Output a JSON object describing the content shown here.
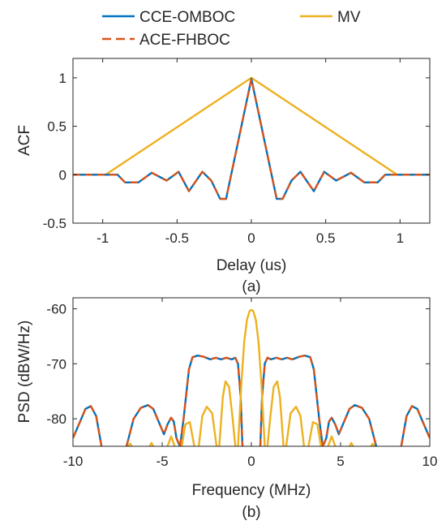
{
  "legend": {
    "placement": "top, outside axes",
    "items": [
      {
        "label": "CCE-OMBOC",
        "color": "#0072BD",
        "style": "solid"
      },
      {
        "label": "MV",
        "color": "#EDB120",
        "style": "solid"
      },
      {
        "label": "ACE-FHBOC",
        "color": "#D95319",
        "style": "dashed"
      }
    ]
  },
  "chart_data": [
    {
      "type": "line",
      "caption": "(a)",
      "xlabel": "Delay (us)",
      "ylabel": "ACF",
      "xlim": [
        -1.2,
        1.2
      ],
      "ylim": [
        -0.5,
        1.2
      ],
      "xticks": [
        -1,
        -0.5,
        0,
        0.5,
        1
      ],
      "xtick_labels": [
        "-1",
        "-0.5",
        "0",
        "0.5",
        "1"
      ],
      "yticks": [
        -0.5,
        0,
        0.5,
        1
      ],
      "ytick_labels": [
        "-0.5",
        "0",
        "0.5",
        "1"
      ],
      "grid": false,
      "series": [
        {
          "name": "MV",
          "color": "#EDB120",
          "style": "solid",
          "x": [
            -1.2,
            -0.98,
            0,
            0.98,
            1.2
          ],
          "y": [
            0,
            0,
            1,
            0,
            0
          ]
        },
        {
          "name": "CCE-OMBOC",
          "color": "#0072BD",
          "style": "solid",
          "x": [
            -1.2,
            -0.9,
            -0.85,
            -0.76,
            -0.67,
            -0.57,
            -0.49,
            -0.42,
            -0.33,
            -0.27,
            -0.21,
            -0.17,
            0,
            0.17,
            0.21,
            0.27,
            0.33,
            0.42,
            0.49,
            0.57,
            0.67,
            0.76,
            0.85,
            0.9,
            1.2
          ],
          "y": [
            0,
            0,
            -0.08,
            -0.08,
            0.02,
            -0.06,
            0.03,
            -0.17,
            0.03,
            -0.06,
            -0.25,
            -0.25,
            0.99,
            -0.25,
            -0.25,
            -0.06,
            0.03,
            -0.17,
            0.03,
            -0.06,
            0.02,
            -0.08,
            -0.08,
            0,
            0
          ]
        },
        {
          "name": "ACE-FHBOC",
          "color": "#D95319",
          "style": "dashed",
          "x": [
            -1.2,
            -0.9,
            -0.85,
            -0.76,
            -0.67,
            -0.57,
            -0.49,
            -0.42,
            -0.33,
            -0.27,
            -0.21,
            -0.17,
            0,
            0.17,
            0.21,
            0.27,
            0.33,
            0.42,
            0.49,
            0.57,
            0.67,
            0.76,
            0.85,
            0.9,
            1.2
          ],
          "y": [
            0,
            0,
            -0.08,
            -0.08,
            0.02,
            -0.06,
            0.03,
            -0.17,
            0.03,
            -0.06,
            -0.25,
            -0.25,
            0.99,
            -0.25,
            -0.25,
            -0.06,
            0.03,
            -0.17,
            0.03,
            -0.06,
            0.02,
            -0.08,
            -0.08,
            0,
            0
          ]
        }
      ]
    },
    {
      "type": "line",
      "caption": "(b)",
      "xlabel": "Frequency (MHz)",
      "ylabel": "PSD (dBW/Hz)",
      "xlim": [
        -10,
        10
      ],
      "ylim": [
        -85,
        -58
      ],
      "xticks": [
        -10,
        -5,
        0,
        5,
        10
      ],
      "xtick_labels": [
        "-10",
        "-5",
        "0",
        "5",
        "10"
      ],
      "yticks": [
        -80,
        -70,
        -60
      ],
      "ytick_labels": [
        "-80",
        "-70",
        "-60"
      ],
      "grid": false,
      "series": [
        {
          "name": "CCE-OMBOC",
          "color": "#0072BD",
          "style": "solid",
          "segments": [
            {
              "x": [
                -10,
                -9.6,
                -9.3,
                -9.0,
                -8.7,
                -8.4
              ],
              "y": [
                -83.5,
                -80.5,
                -78.2,
                -77.7,
                -79.5,
                -85
              ]
            },
            {
              "x": [
                -7.0,
                -6.6,
                -6.2,
                -5.8,
                -5.5,
                -5.2,
                -4.9,
                -4.7,
                -4.5,
                -4.35,
                -4.2,
                -4.1,
                -4.0
              ],
              "y": [
                -85,
                -80,
                -78,
                -77.5,
                -78.2,
                -80.5,
                -82.8,
                -81,
                -79.8,
                -80.5,
                -83.5,
                -84.3,
                -85
              ]
            },
            {
              "x": [
                -4.0,
                -3.8,
                -3.5,
                -3.3,
                -3.0,
                -2.7,
                -2.3,
                -2.0,
                -1.7,
                -1.4,
                -1.1,
                -0.9,
                -0.75,
                -0.6,
                -0.5
              ],
              "y": [
                -85,
                -80,
                -71,
                -68.8,
                -68.5,
                -68.7,
                -69.2,
                -68.9,
                -69.2,
                -68.9,
                -69.2,
                -68.9,
                -70,
                -76,
                -85
              ]
            },
            {
              "x": [
                0.5,
                0.6,
                0.75,
                0.9,
                1.1,
                1.4,
                1.7,
                2.0,
                2.3,
                2.7,
                3.0,
                3.3,
                3.5,
                3.8,
                4.0
              ],
              "y": [
                -85,
                -76,
                -70,
                -68.9,
                -69.2,
                -68.9,
                -69.2,
                -68.9,
                -69.2,
                -68.7,
                -68.5,
                -68.8,
                -71,
                -80,
                -85
              ]
            },
            {
              "x": [
                4.0,
                4.1,
                4.2,
                4.35,
                4.5,
                4.7,
                4.9,
                5.2,
                5.5,
                5.8,
                6.2,
                6.6,
                7.0
              ],
              "y": [
                -85,
                -84.3,
                -83.5,
                -80.5,
                -79.8,
                -81,
                -82.8,
                -80.5,
                -78.2,
                -77.5,
                -78,
                -80,
                -85
              ]
            },
            {
              "x": [
                8.4,
                8.7,
                9.0,
                9.3,
                9.6,
                10
              ],
              "y": [
                -85,
                -79.5,
                -77.7,
                -78.2,
                -80.5,
                -83.5
              ]
            }
          ]
        },
        {
          "name": "ACE-FHBOC",
          "color": "#D95319",
          "style": "dashed",
          "segments": [
            {
              "x": [
                -10,
                -9.6,
                -9.3,
                -9.0,
                -8.7,
                -8.4
              ],
              "y": [
                -83.5,
                -80.5,
                -78.2,
                -77.7,
                -79.5,
                -85
              ]
            },
            {
              "x": [
                -7.0,
                -6.6,
                -6.2,
                -5.8,
                -5.5,
                -5.2,
                -4.9,
                -4.7,
                -4.5,
                -4.35,
                -4.2,
                -4.1,
                -4.0
              ],
              "y": [
                -85,
                -80,
                -78,
                -77.5,
                -78.2,
                -80.5,
                -82.8,
                -81,
                -79.8,
                -80.5,
                -83.5,
                -84.3,
                -85
              ]
            },
            {
              "x": [
                -4.0,
                -3.8,
                -3.5,
                -3.3,
                -3.0,
                -2.7,
                -2.3,
                -2.0,
                -1.7,
                -1.4,
                -1.1,
                -0.9,
                -0.75,
                -0.6,
                -0.5
              ],
              "y": [
                -85,
                -80,
                -71,
                -68.8,
                -68.5,
                -68.7,
                -69.2,
                -68.9,
                -69.2,
                -68.9,
                -69.2,
                -68.9,
                -70,
                -76,
                -85
              ]
            },
            {
              "x": [
                0.5,
                0.6,
                0.75,
                0.9,
                1.1,
                1.4,
                1.7,
                2.0,
                2.3,
                2.7,
                3.0,
                3.3,
                3.5,
                3.8,
                4.0
              ],
              "y": [
                -85,
                -76,
                -70,
                -68.9,
                -69.2,
                -68.9,
                -69.2,
                -68.9,
                -69.2,
                -68.7,
                -68.5,
                -68.8,
                -71,
                -80,
                -85
              ]
            },
            {
              "x": [
                4.0,
                4.1,
                4.2,
                4.35,
                4.5,
                4.7,
                4.9,
                5.2,
                5.5,
                5.8,
                6.2,
                6.6,
                7.0
              ],
              "y": [
                -85,
                -84.3,
                -83.5,
                -80.5,
                -79.8,
                -81,
                -82.8,
                -80.5,
                -78.2,
                -77.5,
                -78,
                -80,
                -85
              ]
            },
            {
              "x": [
                8.4,
                8.7,
                9.0,
                9.3,
                9.6,
                10
              ],
              "y": [
                -85,
                -79.5,
                -77.7,
                -78.2,
                -80.5,
                -83.5
              ]
            }
          ]
        },
        {
          "name": "MV",
          "color": "#EDB120",
          "style": "solid",
          "segments": [
            {
              "x": [
                -6.9,
                -6.8,
                -6.7
              ],
              "y": [
                -85,
                -84.5,
                -85
              ]
            },
            {
              "x": [
                -5.7,
                -5.6,
                -5.5
              ],
              "y": [
                -85,
                -84.4,
                -85
              ]
            },
            {
              "x": [
                -4.7,
                -4.5,
                -4.3
              ],
              "y": [
                -85,
                -83.2,
                -85
              ]
            },
            {
              "x": [
                -3.9,
                -3.7,
                -3.45,
                -3.2
              ],
              "y": [
                -85,
                -81,
                -80.6,
                -85
              ]
            },
            {
              "x": [
                -2.95,
                -2.75,
                -2.5,
                -2.2,
                -1.95
              ],
              "y": [
                -85,
                -79.5,
                -77.8,
                -79,
                -85
              ]
            },
            {
              "x": [
                -1.8,
                -1.6,
                -1.45,
                -1.25,
                -1.05,
                -0.9
              ],
              "y": [
                -85,
                -76,
                -73.2,
                -74.2,
                -80,
                -85
              ]
            },
            {
              "x": [
                -0.75,
                -0.55,
                -0.4,
                -0.25,
                -0.1,
                0,
                0.1,
                0.25,
                0.4,
                0.55,
                0.75
              ],
              "y": [
                -85,
                -73,
                -66,
                -62,
                -60.4,
                -60.2,
                -60.4,
                -62,
                -66,
                -73,
                -85
              ]
            },
            {
              "x": [
                0.9,
                1.05,
                1.25,
                1.45,
                1.6,
                1.8
              ],
              "y": [
                -85,
                -80,
                -74.2,
                -73.2,
                -76,
                -85
              ]
            },
            {
              "x": [
                1.95,
                2.2,
                2.5,
                2.75,
                2.95
              ],
              "y": [
                -85,
                -79,
                -77.8,
                -79.5,
                -85
              ]
            },
            {
              "x": [
                3.2,
                3.45,
                3.7,
                3.9
              ],
              "y": [
                -85,
                -80.6,
                -81,
                -85
              ]
            },
            {
              "x": [
                4.3,
                4.5,
                4.7
              ],
              "y": [
                -85,
                -83.2,
                -85
              ]
            },
            {
              "x": [
                5.5,
                5.6,
                5.7
              ],
              "y": [
                -85,
                -84.4,
                -85
              ]
            },
            {
              "x": [
                6.7,
                6.8,
                6.9
              ],
              "y": [
                -85,
                -84.5,
                -85
              ]
            }
          ]
        }
      ]
    }
  ]
}
